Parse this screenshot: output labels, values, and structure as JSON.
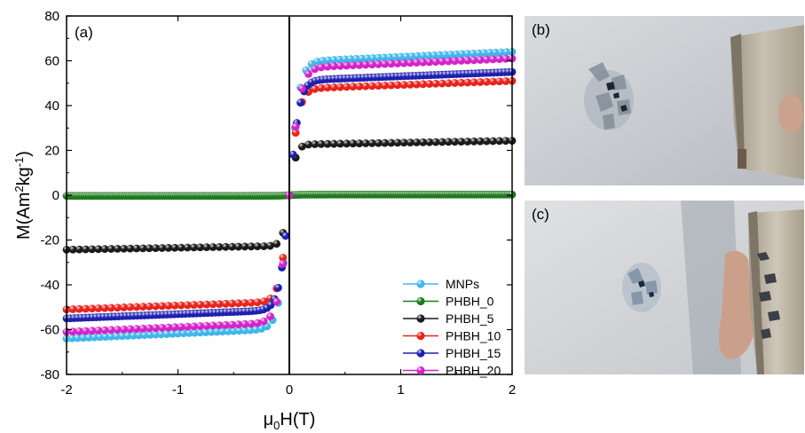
{
  "chart_data": {
    "type": "scatter",
    "panel_label": "(a)",
    "xlabel_main": "μ",
    "xlabel_sub": "0",
    "xlabel_rest": "H(T)",
    "ylabel_pre": "M(Am",
    "ylabel_sup1": "2",
    "ylabel_mid": "kg",
    "ylabel_sup2": "-1",
    "ylabel_post": ")",
    "xlim": [
      -2,
      2
    ],
    "ylim": [
      -80,
      80
    ],
    "xticks": [
      "-2",
      "-1",
      "0",
      "1",
      "2"
    ],
    "yticks": [
      "-80",
      "-60",
      "-40",
      "-20",
      "0",
      "20",
      "40",
      "60",
      "80"
    ],
    "legend_position": "lower-right",
    "series": [
      {
        "name": "MNPs",
        "color": "#3fb6ea",
        "Ms": 64,
        "H0": 0.09,
        "n": 81
      },
      {
        "name": "PHBH_0",
        "color": "#1e7a1e",
        "Ms": 0.3,
        "H0": 0.1,
        "n": 201
      },
      {
        "name": "PHBH_5",
        "color": "#1a1a1a",
        "Ms": 24.3,
        "H0": 0.06,
        "n": 71
      },
      {
        "name": "PHBH_10",
        "color": "#e8231c",
        "Ms": 51,
        "H0": 0.085,
        "n": 71
      },
      {
        "name": "PHBH_15",
        "color": "#1d1fb0",
        "Ms": 55,
        "H0": 0.09,
        "n": 121
      },
      {
        "name": "PHBH_20",
        "color": "#d423c8",
        "Ms": 61,
        "H0": 0.095,
        "n": 71
      }
    ]
  },
  "photos": [
    {
      "label": "(b)"
    },
    {
      "label": "(c)"
    }
  ]
}
